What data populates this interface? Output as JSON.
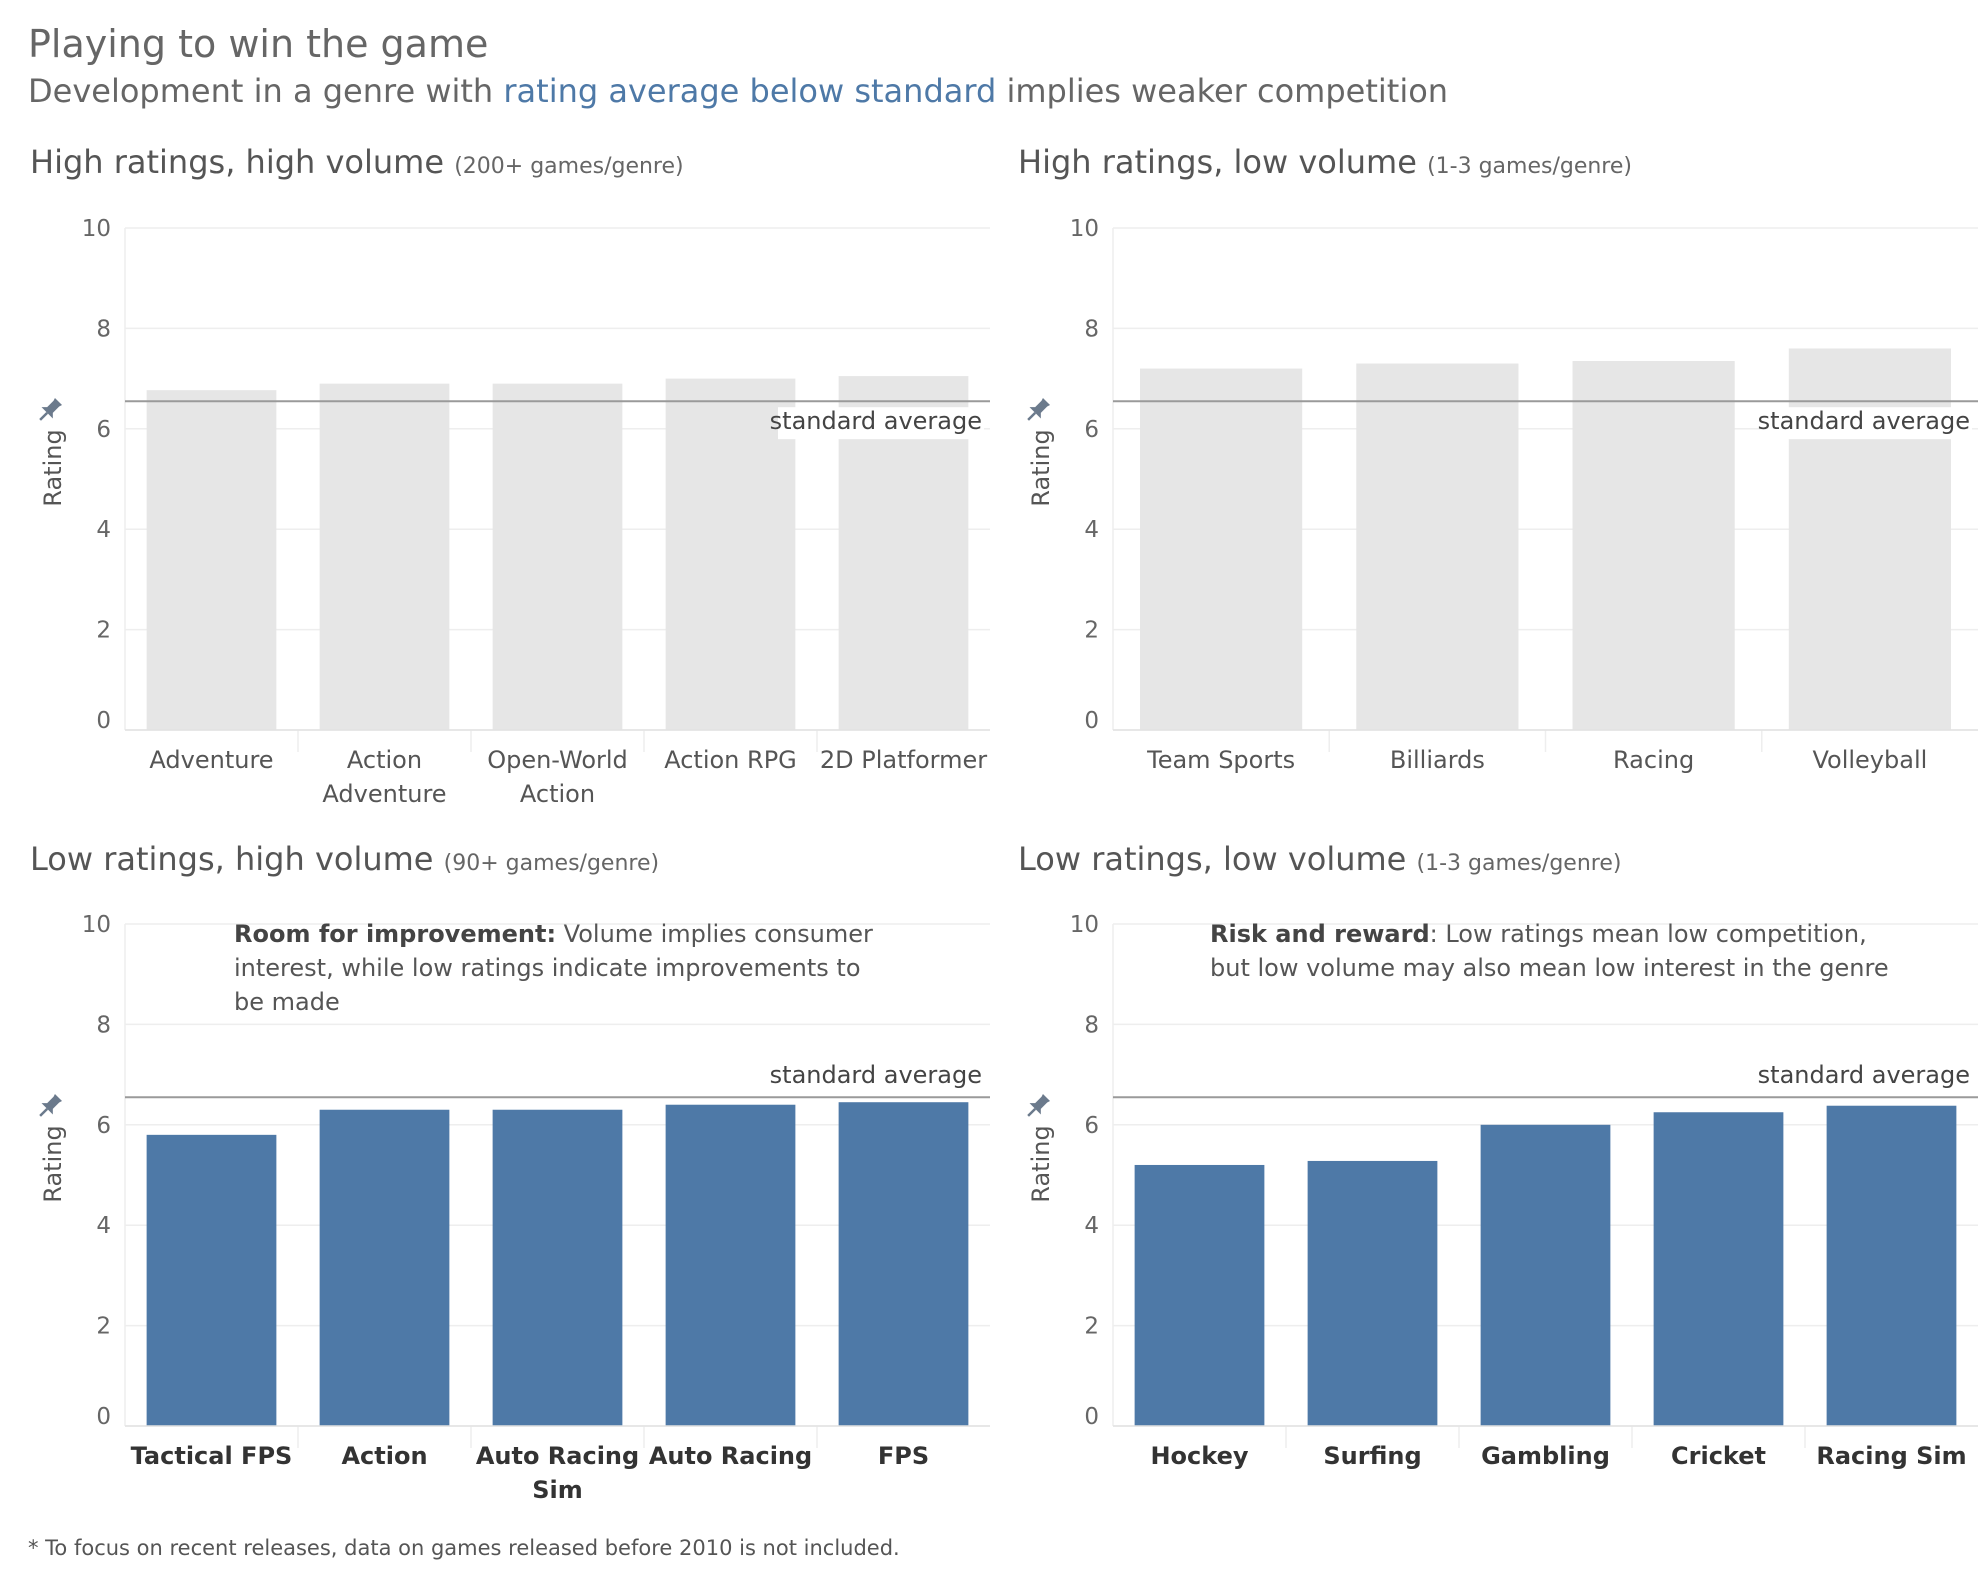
{
  "header": {
    "title": "Playing to win the game",
    "subtitle_pre": "Development in a genre with ",
    "subtitle_highlight": "rating average below standard",
    "subtitle_post": " implies weaker competition",
    "highlight_color": "#4e79a7"
  },
  "panels": [
    {
      "title": "High ratings, high volume",
      "title_small": "(200+ games/genre)",
      "annotation_bold": "",
      "annotation_text": ""
    },
    {
      "title": "High ratings, low volume",
      "title_small": "(1-3 games/genre)",
      "annotation_bold": "",
      "annotation_text": ""
    },
    {
      "title": "Low ratings, high volume",
      "title_small": "(90+ games/genre)",
      "annotation_bold": "Room for improvement:",
      "annotation_text": " Volume implies consumer interest, while low ratings indicate improvements to be made"
    },
    {
      "title": "Low ratings, low volume",
      "title_small": "(1-3 games/genre)",
      "annotation_bold": "Risk and reward",
      "annotation_text": ": Low ratings mean low competition, but low volume may also mean low interest in the genre"
    }
  ],
  "chart_data": [
    {
      "type": "bar",
      "categories": [
        [
          "Adventure"
        ],
        [
          "Action",
          "Adventure"
        ],
        [
          "Open-World",
          "Action"
        ],
        [
          "Action RPG"
        ],
        [
          "2D Platformer"
        ]
      ],
      "values": [
        6.77,
        6.9,
        6.9,
        7.0,
        7.05
      ],
      "ylabel": "Rating",
      "ylim": [
        0,
        10
      ],
      "yticks": [
        0,
        2,
        4,
        6,
        8,
        10
      ],
      "reference_line": {
        "value": 6.55,
        "label": "standard average"
      },
      "bar_color": "#e6e6e6",
      "bold_labels": false
    },
    {
      "type": "bar",
      "categories": [
        [
          "Team Sports"
        ],
        [
          "Billiards"
        ],
        [
          "Racing"
        ],
        [
          "Volleyball"
        ]
      ],
      "values": [
        7.2,
        7.3,
        7.35,
        7.6
      ],
      "ylabel": "Rating",
      "ylim": [
        0,
        10
      ],
      "yticks": [
        0,
        2,
        4,
        6,
        8,
        10
      ],
      "reference_line": {
        "value": 6.55,
        "label": "standard average"
      },
      "bar_color": "#e6e6e6",
      "bold_labels": false
    },
    {
      "type": "bar",
      "categories": [
        [
          "Tactical FPS"
        ],
        [
          "Action"
        ],
        [
          "Auto Racing",
          "Sim"
        ],
        [
          "Auto Racing"
        ],
        [
          "FPS"
        ]
      ],
      "values": [
        5.8,
        6.3,
        6.3,
        6.4,
        6.45
      ],
      "ylabel": "Rating",
      "ylim": [
        0,
        10
      ],
      "yticks": [
        0,
        2,
        4,
        6,
        8,
        10
      ],
      "reference_line": {
        "value": 6.55,
        "label": "standard average"
      },
      "bar_color": "#4e79a7",
      "bold_labels": true
    },
    {
      "type": "bar",
      "categories": [
        [
          "Hockey"
        ],
        [
          "Surfing"
        ],
        [
          "Gambling"
        ],
        [
          "Cricket"
        ],
        [
          "Racing Sim"
        ]
      ],
      "values": [
        5.2,
        5.28,
        6.0,
        6.25,
        6.38
      ],
      "ylabel": "Rating",
      "ylim": [
        0,
        10
      ],
      "yticks": [
        0,
        2,
        4,
        6,
        8,
        10
      ],
      "reference_line": {
        "value": 6.55,
        "label": "standard average"
      },
      "bar_color": "#4e79a7",
      "bold_labels": true
    }
  ],
  "footnote": "* To focus on recent releases, data on games released before 2010 is not included."
}
